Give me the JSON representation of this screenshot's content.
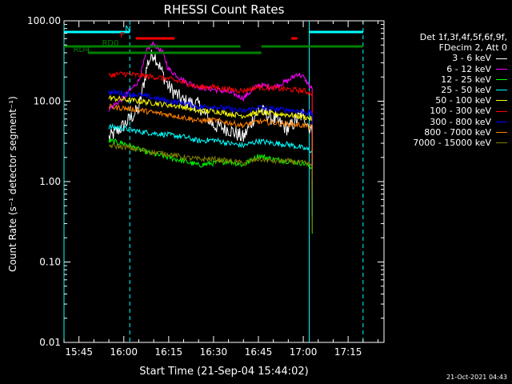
{
  "chart_data": {
    "type": "line",
    "title": "RHESSI Count Rates",
    "xlabel": "Start Time (21-Sep-04 15:44:02)",
    "ylabel": "Count Rate (s⁻¹ detector segment⁻¹)",
    "y_scale": "log",
    "ylim": [
      0.01,
      100
    ],
    "xlim": [
      "15:40",
      "17:27"
    ],
    "x_ticks": [
      "15:45",
      "16:00",
      "16:15",
      "16:30",
      "16:45",
      "17:00",
      "17:15"
    ],
    "y_ticks": [
      "0.01",
      "0.10",
      "1.00",
      "10.00",
      "100.00"
    ],
    "grid": false,
    "legend_position": "top-right",
    "legend_header": [
      "Det 1f,3f,4f,5f,6f,9f,",
      "FDecim 2, Att 0"
    ],
    "series": [
      {
        "name": "3 - 6 keV",
        "color": "#ffffff",
        "x": [
          "15:55",
          "16:00",
          "16:05",
          "16:08",
          "16:10",
          "16:13",
          "16:15",
          "16:20",
          "16:25",
          "16:30",
          "16:35",
          "16:40",
          "16:45",
          "16:50",
          "16:55",
          "16:58",
          "17:00",
          "17:03"
        ],
        "y": [
          3.5,
          5,
          8,
          30,
          40,
          22,
          15,
          10,
          9,
          5,
          4.5,
          3.5,
          8,
          6,
          4.5,
          6,
          7,
          4
        ]
      },
      {
        "name": "6 - 12 keV",
        "color": "#ff00ff",
        "x": [
          "15:55",
          "16:00",
          "16:05",
          "16:08",
          "16:10",
          "16:13",
          "16:15",
          "16:20",
          "16:25",
          "16:30",
          "16:35",
          "16:40",
          "16:45",
          "16:50",
          "16:55",
          "16:58",
          "17:00",
          "17:03"
        ],
        "y": [
          8,
          11,
          18,
          45,
          52,
          40,
          25,
          18,
          15,
          14,
          13,
          11,
          16,
          15,
          18,
          22,
          20,
          14
        ]
      },
      {
        "name": "12 - 25 keV",
        "color": "#00ff00",
        "x": [
          "15:55",
          "16:00",
          "16:05",
          "16:10",
          "16:15",
          "16:20",
          "16:25",
          "16:30",
          "16:35",
          "16:40",
          "16:45",
          "16:50",
          "16:55",
          "17:00",
          "17:03"
        ],
        "y": [
          3.2,
          3.0,
          2.5,
          2.2,
          2.0,
          1.8,
          1.6,
          1.7,
          1.8,
          1.6,
          2.1,
          1.9,
          1.8,
          1.7,
          1.5
        ]
      },
      {
        "name": "25 - 50 keV",
        "color": "#00ffff",
        "x": [
          "15:55",
          "16:00",
          "16:05",
          "16:10",
          "16:15",
          "16:20",
          "16:25",
          "16:30",
          "16:35",
          "16:40",
          "16:45",
          "16:50",
          "16:55",
          "17:00",
          "17:03"
        ],
        "y": [
          4.8,
          4.6,
          4.2,
          4.0,
          3.8,
          3.6,
          3.2,
          3.3,
          3.0,
          2.8,
          3.2,
          3.0,
          2.9,
          2.6,
          2.4
        ]
      },
      {
        "name": "50 - 100 keV",
        "color": "#ffff00",
        "x": [
          "15:55",
          "16:00",
          "16:05",
          "16:10",
          "16:15",
          "16:20",
          "16:25",
          "16:30",
          "16:35",
          "16:40",
          "16:45",
          "16:50",
          "16:55",
          "17:00",
          "17:03"
        ],
        "y": [
          11,
          10.5,
          10,
          9.5,
          9,
          8.5,
          7.5,
          7.6,
          7,
          6.6,
          7.2,
          7,
          6.8,
          6.4,
          6
        ]
      },
      {
        "name": "100 - 300 keV",
        "color": "#ff0000",
        "x": [
          "15:55",
          "16:00",
          "16:05",
          "16:10",
          "16:15",
          "16:20",
          "16:25",
          "16:30",
          "16:35",
          "16:40",
          "16:45",
          "16:50",
          "16:55",
          "17:00",
          "17:03"
        ],
        "y": [
          21,
          22,
          21,
          20,
          19,
          17,
          15,
          15,
          14,
          13.5,
          15,
          14.5,
          14,
          13.5,
          12.5
        ]
      },
      {
        "name": "300 - 800 keV",
        "color": "#0000ff",
        "x": [
          "15:55",
          "16:00",
          "16:05",
          "16:10",
          "16:15",
          "16:20",
          "16:25",
          "16:30",
          "16:35",
          "16:40",
          "16:45",
          "16:50",
          "16:55",
          "17:00",
          "17:03"
        ],
        "y": [
          13,
          12.5,
          12,
          11,
          10,
          9.5,
          8.5,
          8.6,
          8,
          7.5,
          8.4,
          8,
          7.8,
          7.4,
          7
        ]
      },
      {
        "name": "800 - 7000 keV",
        "color": "#ff8000",
        "x": [
          "15:55",
          "16:00",
          "16:05",
          "16:10",
          "16:15",
          "16:20",
          "16:25",
          "16:30",
          "16:35",
          "16:40",
          "16:45",
          "16:50",
          "16:55",
          "17:00",
          "17:03"
        ],
        "y": [
          8.5,
          8.2,
          7.8,
          7.2,
          6.8,
          6.3,
          5.7,
          5.8,
          5.4,
          5,
          5.6,
          5.4,
          5.2,
          5,
          4.7
        ]
      },
      {
        "name": "7000 - 15000 keV",
        "color": "#808000",
        "x": [
          "15:55",
          "16:00",
          "16:05",
          "16:10",
          "16:15",
          "16:20",
          "16:25",
          "16:30",
          "16:35",
          "16:40",
          "16:45",
          "16:50",
          "16:55",
          "17:00",
          "17:03"
        ],
        "y": [
          2.8,
          2.7,
          2.5,
          2.3,
          2.2,
          2.0,
          1.9,
          1.9,
          1.8,
          1.7,
          1.9,
          1.8,
          1.8,
          1.7,
          1.6
        ]
      }
    ],
    "flags": [
      {
        "label": "N",
        "color": "#00ffff",
        "segments": [
          [
            "15:40",
            "16:02"
          ],
          [
            "17:02",
            "17:20"
          ]
        ]
      },
      {
        "label": "F",
        "color": "#ff0000",
        "segments": [
          [
            "16:04",
            "16:17"
          ],
          [
            "16:56",
            "16:58"
          ]
        ]
      },
      {
        "label": "RD0",
        "color": "#008000",
        "segments": [
          [
            "15:40",
            "16:39"
          ],
          [
            "16:46",
            "17:20"
          ]
        ]
      },
      {
        "label": "RD4",
        "color": "#008000",
        "segments": [
          [
            "15:48",
            "16:39"
          ],
          [
            "16:39",
            "16:46"
          ]
        ]
      }
    ],
    "vertical_lines": [
      {
        "x": "15:40",
        "color": "#00ffff",
        "style": "solid"
      },
      {
        "x": "16:02",
        "color": "#00ffff",
        "style": "dashed"
      },
      {
        "x": "17:02",
        "color": "#00ffff",
        "style": "solid"
      },
      {
        "x": "17:20",
        "color": "#00ffff",
        "style": "dashed"
      }
    ]
  },
  "timestamp": "21-Oct-2021 04:43"
}
